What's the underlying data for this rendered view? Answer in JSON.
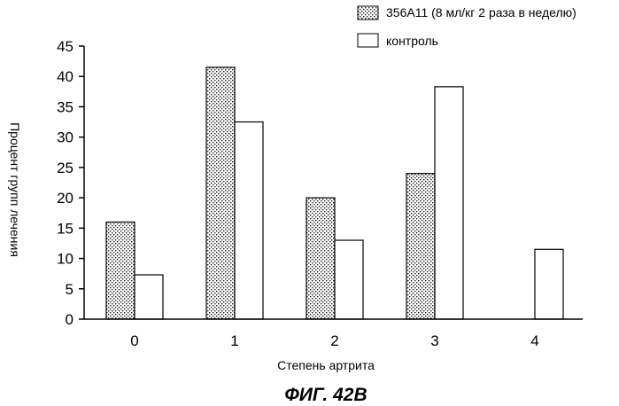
{
  "chart_data": {
    "type": "bar",
    "categories": [
      "0",
      "1",
      "2",
      "3",
      "4"
    ],
    "series": [
      {
        "name": "356A11 (8 мл/кг 2 раза в неделю)",
        "values": [
          16,
          41.5,
          20,
          24,
          null
        ],
        "pattern": "dotted"
      },
      {
        "name": "контроль",
        "values": [
          7.3,
          32.5,
          13,
          38.3,
          11.5
        ],
        "pattern": "white"
      }
    ],
    "xlabel": "Степень артрита",
    "ylabel": "Процент групп лечения",
    "ylim": [
      0,
      45
    ],
    "yticks": [
      0,
      5,
      10,
      15,
      20,
      25,
      30,
      35,
      40,
      45
    ],
    "grid": false,
    "legend_position": "top-right",
    "caption": "ФИГ. 42В"
  }
}
